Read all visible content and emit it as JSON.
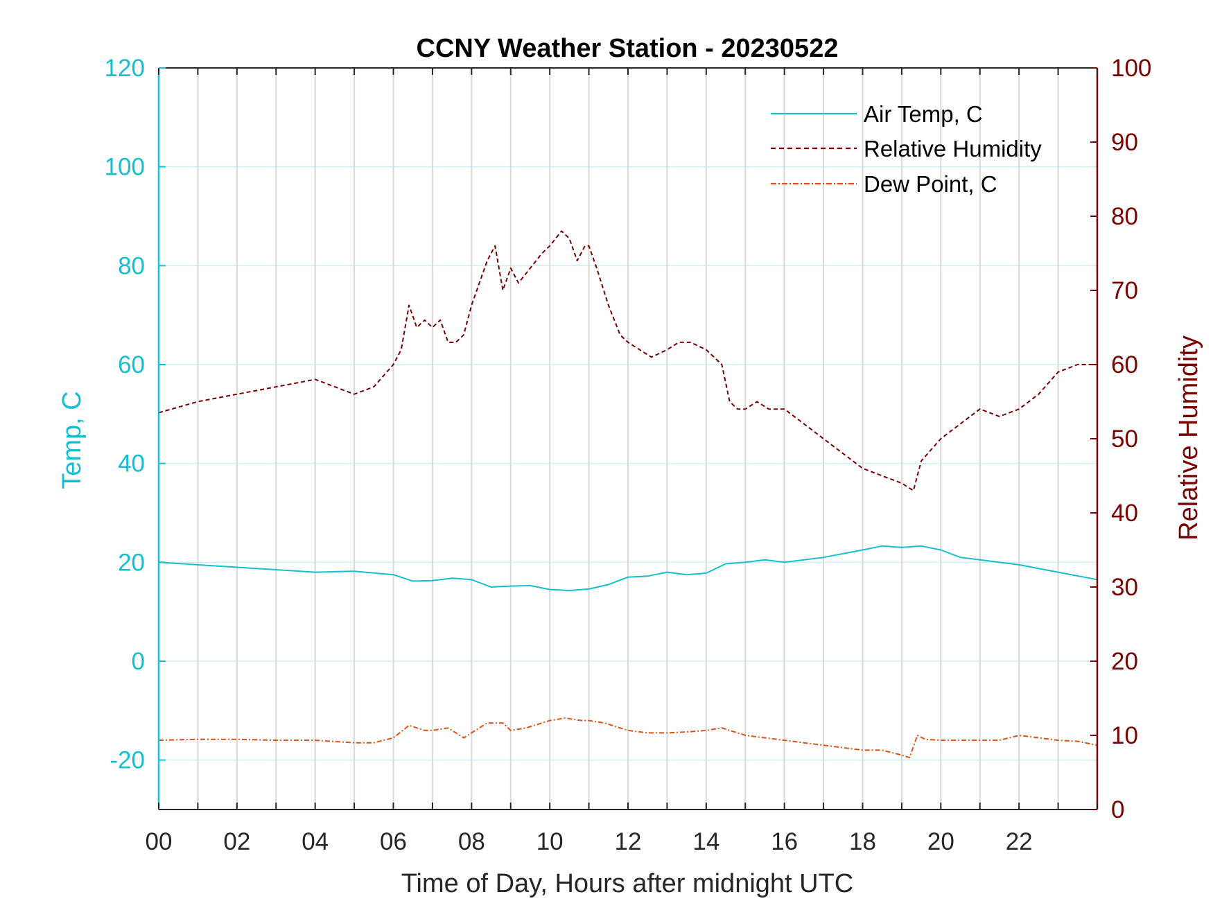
{
  "colors": {
    "air_temp": "#17becf",
    "humidity": "#7a0000",
    "dew_point": "#d95319",
    "x_axis": "#262626",
    "hgrid": "#cdeff5",
    "vgrid": "#d9d9d9"
  },
  "chart_data": {
    "type": "line",
    "title": "CCNY Weather Station - 20230522",
    "xlabel": "Time of Day, Hours after midnight UTC",
    "ylabel_left": "Temp, C",
    "ylabel_right": "Relative Humidity",
    "xlim": [
      0,
      24
    ],
    "ylim_left": [
      -30,
      120
    ],
    "ylim_right": [
      0,
      100
    ],
    "x_ticks": [
      0,
      2,
      4,
      6,
      8,
      10,
      12,
      14,
      16,
      18,
      20,
      22
    ],
    "x_tick_labels": [
      "00",
      "02",
      "04",
      "06",
      "08",
      "10",
      "12",
      "14",
      "16",
      "18",
      "20",
      "22"
    ],
    "y_left_ticks": [
      -20,
      0,
      20,
      40,
      60,
      80,
      100,
      120
    ],
    "y_left_tick_labels": [
      "-20",
      "0",
      "20",
      "40",
      "60",
      "80",
      "100",
      "120"
    ],
    "y_right_ticks": [
      0,
      10,
      20,
      30,
      40,
      50,
      60,
      70,
      80,
      90,
      100
    ],
    "y_right_tick_labels": [
      "0",
      "10",
      "20",
      "30",
      "40",
      "50",
      "60",
      "70",
      "80",
      "90",
      "100"
    ],
    "grid": "vertical lines every hour, horizontal lines at left-axis ticks",
    "legend_position": "top-right",
    "series": [
      {
        "name": "Air Temp, C",
        "axis": "left",
        "style": "solid",
        "x": [
          0,
          1,
          2,
          3,
          4,
          5,
          6,
          6.5,
          7,
          7.5,
          8,
          8.5,
          9,
          9.5,
          10,
          10.5,
          11,
          11.5,
          12,
          12.5,
          13,
          13.5,
          14,
          14.5,
          15,
          15.5,
          16,
          17,
          18,
          18.5,
          19,
          19.5,
          20,
          20.5,
          21,
          22,
          23,
          24
        ],
        "y": [
          20,
          19.5,
          19,
          18.5,
          18,
          18.2,
          17.5,
          16.2,
          16.3,
          16.8,
          16.5,
          15,
          15.2,
          15.3,
          14.5,
          14.3,
          14.6,
          15.5,
          17,
          17.2,
          18,
          17.5,
          17.8,
          19.7,
          20,
          20.5,
          20,
          21,
          22.5,
          23.3,
          23,
          23.3,
          22.5,
          21,
          20.5,
          19.5,
          18,
          16.5
        ]
      },
      {
        "name": "Relative Humidity",
        "axis": "right",
        "style": "dashed",
        "x": [
          0,
          1,
          2,
          3,
          3.5,
          4,
          5,
          5.5,
          6,
          6.2,
          6.4,
          6.6,
          6.8,
          7,
          7.2,
          7.4,
          7.6,
          7.8,
          8,
          8.2,
          8.4,
          8.6,
          8.8,
          9,
          9.2,
          9.5,
          9.8,
          10,
          10.3,
          10.5,
          10.7,
          10.9,
          11,
          11.2,
          11.5,
          11.8,
          12,
          12.3,
          12.6,
          13,
          13.3,
          13.6,
          14,
          14.4,
          14.6,
          14.8,
          15,
          15.3,
          15.6,
          16,
          16.5,
          17,
          17.5,
          18,
          18.5,
          19,
          19.3,
          19.5,
          20,
          20.5,
          21,
          21.5,
          22,
          22.5,
          23,
          23.5,
          24
        ],
        "y": [
          53.5,
          55,
          56,
          57,
          57.5,
          58,
          56,
          57,
          60,
          62,
          68,
          65,
          66,
          65,
          66,
          63,
          63,
          64,
          68,
          71,
          74,
          76,
          70,
          73,
          71,
          73,
          75,
          76,
          78,
          77,
          74,
          76,
          76,
          73,
          68,
          64,
          63,
          62,
          61,
          62,
          63,
          63,
          62,
          60,
          55,
          54,
          54,
          55,
          54,
          54,
          52,
          50,
          48,
          46,
          45,
          44,
          43,
          47,
          50,
          52,
          54,
          53,
          54,
          56,
          59,
          60,
          60
        ]
      },
      {
        "name": "Dew Point, C",
        "axis": "left",
        "style": "dash-dot",
        "x": [
          0,
          1,
          2,
          3,
          4,
          5,
          5.5,
          6,
          6.4,
          6.8,
          7,
          7.4,
          7.8,
          8,
          8.4,
          8.8,
          9,
          9.4,
          9.8,
          10,
          10.4,
          10.8,
          11,
          11.4,
          12,
          12.5,
          13,
          13.5,
          14,
          14.4,
          14.8,
          15,
          15.5,
          16,
          16.5,
          17,
          17.5,
          18,
          18.5,
          19,
          19.2,
          19.4,
          19.6,
          20,
          20.5,
          21,
          21.5,
          22,
          22.5,
          23,
          23.5,
          24
        ],
        "y": [
          -16,
          -15.8,
          -15.8,
          -16,
          -16,
          -16.5,
          -16.5,
          -15.5,
          -13,
          -14,
          -14,
          -13.5,
          -15.5,
          -14.5,
          -12.5,
          -12.5,
          -14,
          -13.5,
          -12.5,
          -12,
          -11.5,
          -12,
          -12,
          -12.5,
          -14,
          -14.5,
          -14.5,
          -14.3,
          -14,
          -13.5,
          -14.5,
          -15,
          -15.5,
          -16,
          -16.5,
          -17,
          -17.5,
          -18,
          -18,
          -19,
          -19.5,
          -15,
          -15.8,
          -16,
          -16,
          -16,
          -16,
          -15,
          -15.5,
          -16,
          -16.2,
          -17
        ]
      }
    ]
  }
}
